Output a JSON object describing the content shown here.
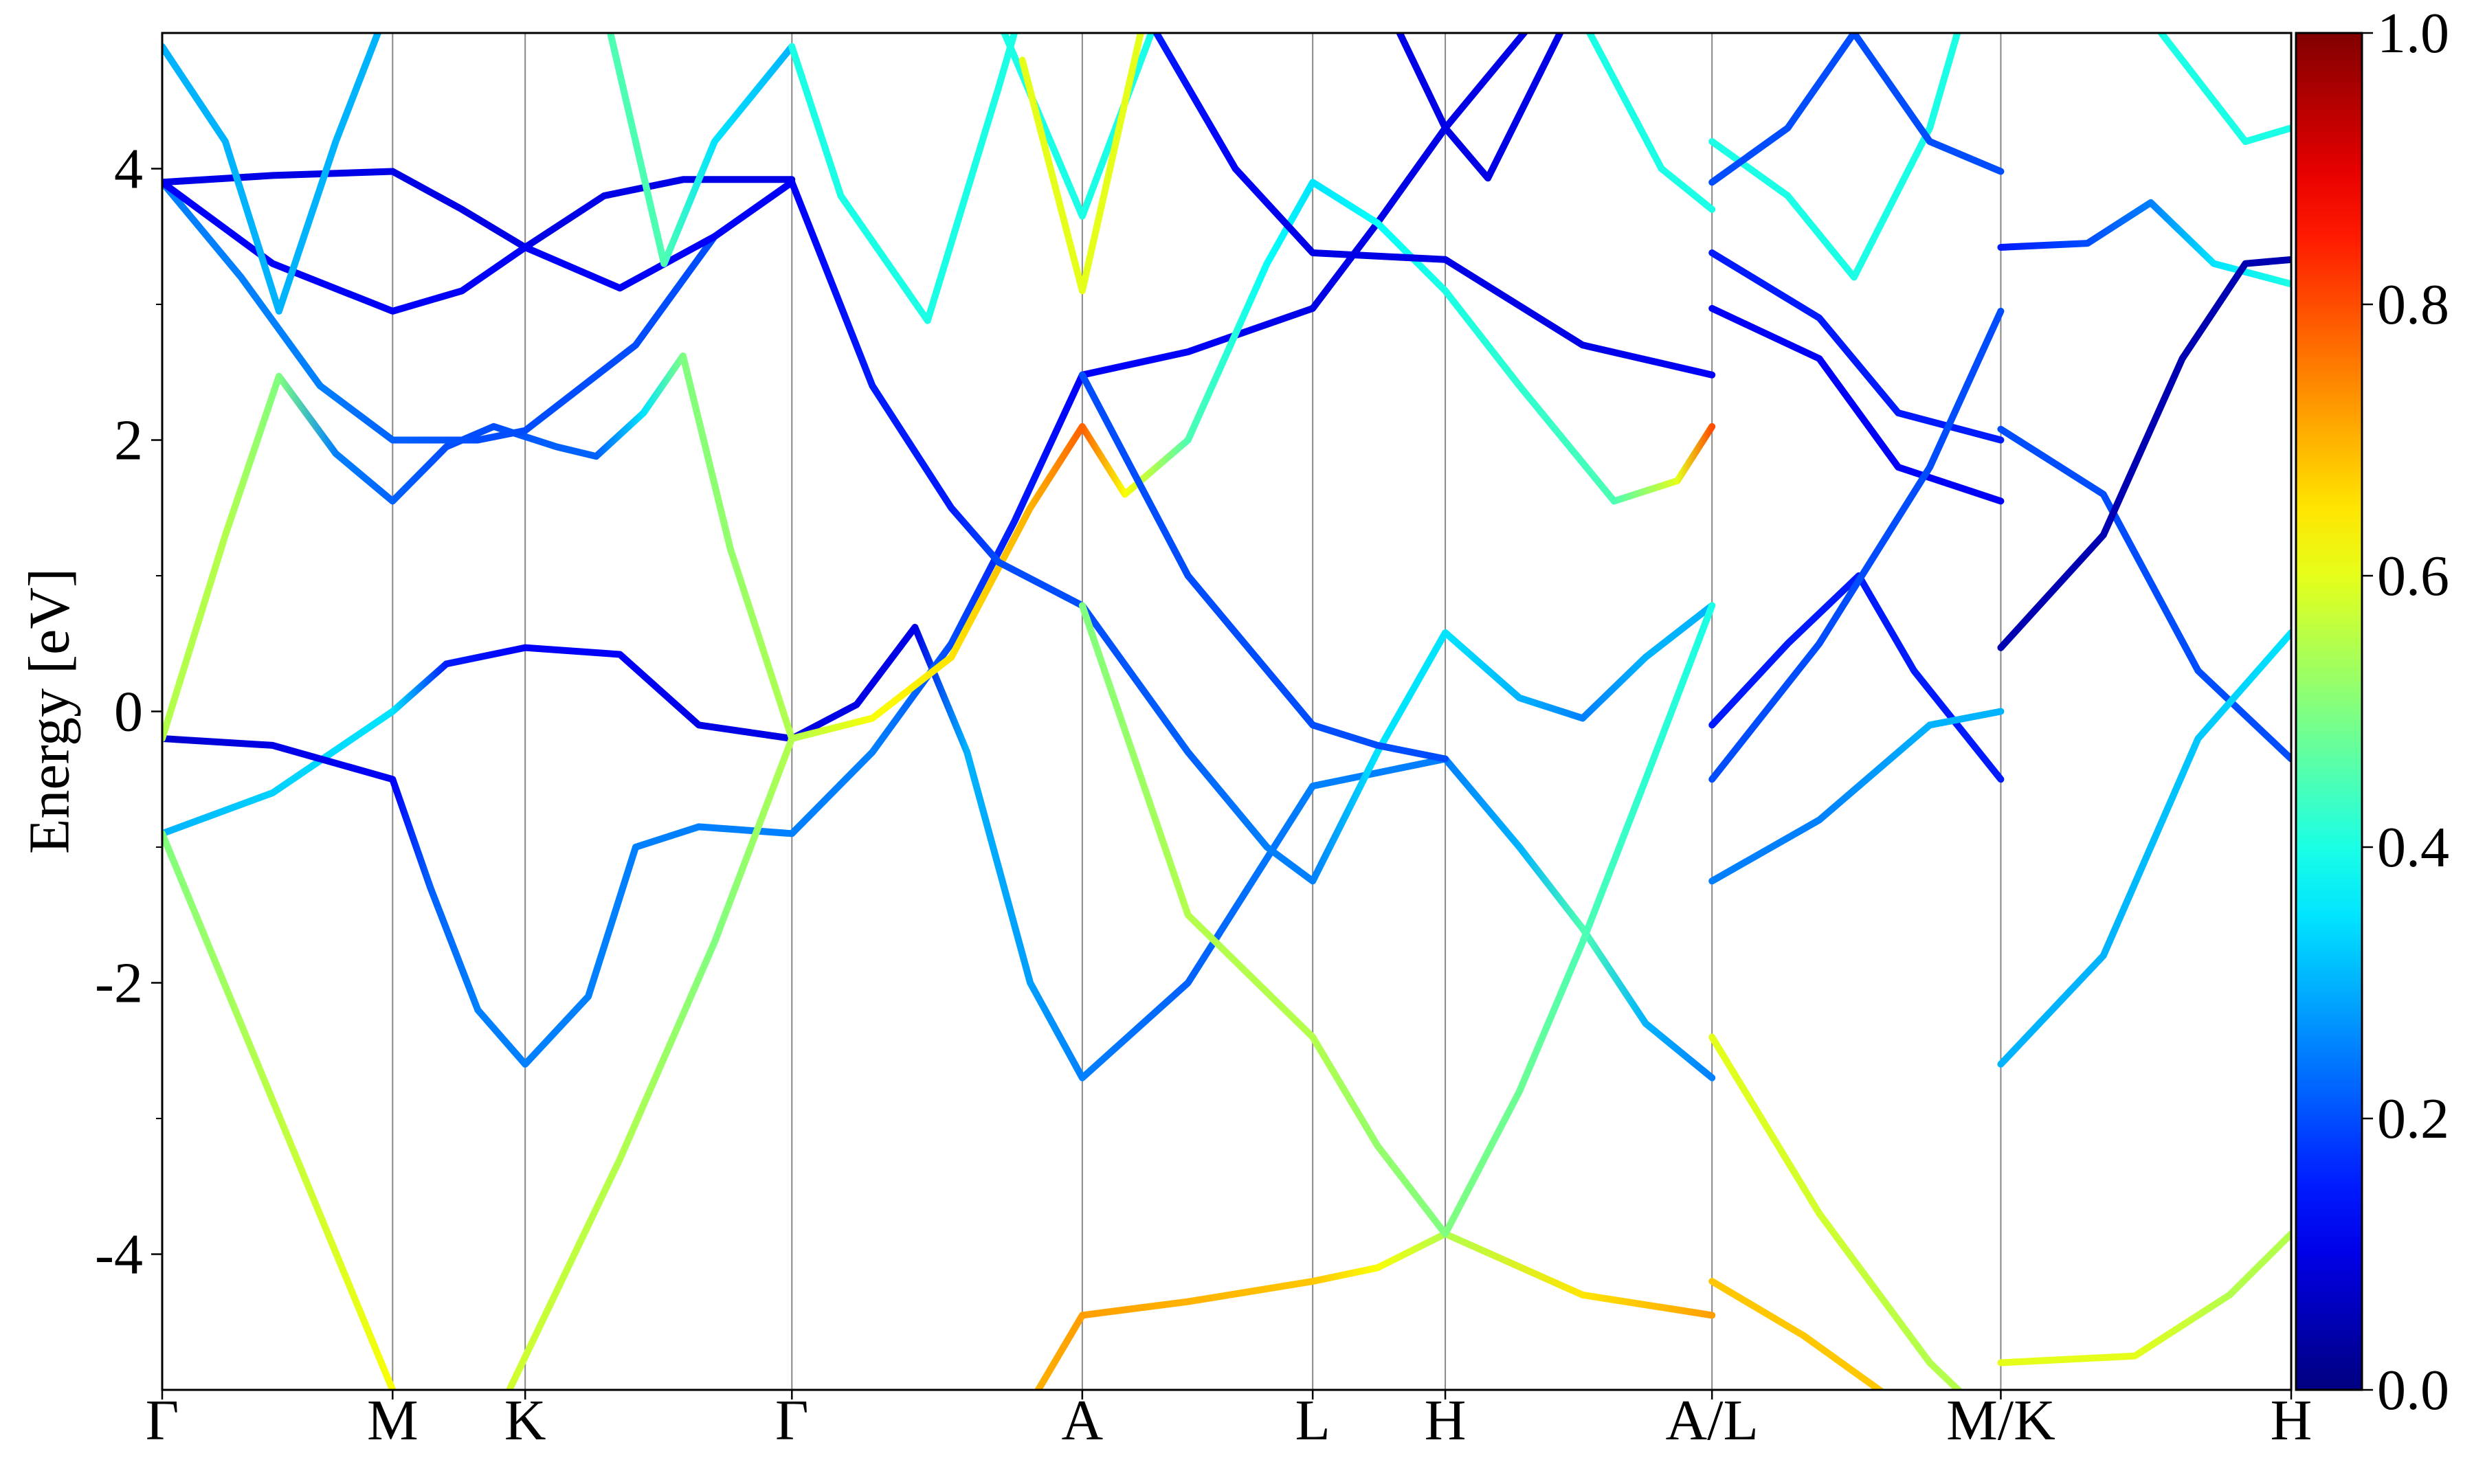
{
  "chart_data": {
    "type": "band",
    "ylabel": "Energy [eV]",
    "xlim": [
      0,
      13.49
    ],
    "ylim": [
      -5,
      5
    ],
    "xticks": [
      {
        "value": 0,
        "label": "Γ"
      },
      {
        "value": 1.46,
        "label": "M"
      },
      {
        "value": 2.3,
        "label": "K"
      },
      {
        "value": 3.99,
        "label": "Γ"
      },
      {
        "value": 5.83,
        "label": "A"
      },
      {
        "value": 7.29,
        "label": "L"
      },
      {
        "value": 8.13,
        "label": "H"
      },
      {
        "value": 9.82,
        "label": "A/L"
      },
      {
        "value": 11.65,
        "label": "M/K"
      },
      {
        "value": 13.49,
        "label": "H"
      }
    ],
    "yticks": [
      -4,
      -2,
      0,
      2,
      4
    ],
    "yminorticks": [
      -3,
      -1,
      1,
      3
    ],
    "colormap": "jet",
    "clim": [
      0,
      1
    ],
    "cticks": [
      {
        "value": 0,
        "label": "0.0"
      },
      0.2,
      0.4,
      0.6,
      0.8,
      {
        "value": 1,
        "label": "1.0"
      }
    ],
    "grid": true,
    "series": [
      {
        "x": [
          0,
          0.7,
          1.46,
          1.8,
          2.3,
          2.9,
          3.4,
          3.99,
          4.4,
          4.77,
          5.1,
          5.5,
          5.83,
          6.5,
          7.29,
          8.13,
          8.6,
          9.0,
          9.4,
          9.82
        ],
        "values": [
          -0.9,
          -0.6,
          0.0,
          0.35,
          0.47,
          0.42,
          -0.1,
          -0.2,
          0.05,
          0.62,
          -0.3,
          -2.0,
          -2.7,
          -2.0,
          -0.55,
          -0.35,
          -1.0,
          -1.6,
          -2.3,
          -2.7
        ],
        "weights": [
          0.3,
          0.33,
          0.35,
          0.15,
          0.12,
          0.12,
          0.1,
          0.1,
          0.1,
          0.1,
          0.3,
          0.28,
          0.25,
          0.22,
          0.25,
          0.25,
          0.3,
          0.45,
          0.3,
          0.25
        ]
      },
      {
        "x": [
          0,
          0.7,
          1.46,
          1.7,
          2.0,
          2.3,
          2.7,
          3.0,
          3.4,
          3.99,
          4.5,
          5.0,
          5.4,
          5.83,
          6.5,
          7.29,
          7.7,
          8.13,
          8.7
        ],
        "values": [
          -0.2,
          -0.25,
          -0.5,
          -1.3,
          -2.2,
          -2.6,
          -2.1,
          -1.0,
          -0.85,
          -0.9,
          -0.3,
          0.5,
          1.4,
          2.48,
          2.65,
          2.97,
          3.6,
          4.3,
          5.1
        ],
        "weights": [
          0.08,
          0.1,
          0.12,
          0.22,
          0.25,
          0.25,
          0.25,
          0.25,
          0.25,
          0.25,
          0.25,
          0.2,
          0.15,
          0.12,
          0.12,
          0.1,
          0.1,
          0.1,
          0.1
        ]
      },
      {
        "x": [
          0,
          1.46
        ],
        "values": [
          -0.9,
          -5.0
        ],
        "weights": [
          0.5,
          0.62
        ]
      },
      {
        "x": [
          2.2,
          2.9,
          3.5,
          3.99,
          4.5,
          5.0,
          5.5,
          5.83,
          6.1,
          6.5,
          7.0,
          7.29,
          7.7,
          8.13,
          8.6,
          9.2,
          9.6,
          9.82
        ],
        "values": [
          -5.0,
          -3.3,
          -1.7,
          -0.2,
          -0.05,
          0.4,
          1.5,
          2.1,
          1.6,
          2.0,
          3.3,
          3.9,
          3.6,
          3.1,
          2.4,
          1.55,
          1.7,
          2.1
        ],
        "weights": [
          0.58,
          0.55,
          0.5,
          0.55,
          0.62,
          0.65,
          0.7,
          0.78,
          0.62,
          0.45,
          0.38,
          0.35,
          0.38,
          0.4,
          0.42,
          0.45,
          0.6,
          0.8
        ]
      },
      {
        "x": [
          0,
          0.4,
          0.74,
          1.1,
          1.46,
          1.8,
          2.1,
          2.5,
          2.75,
          3.05,
          3.3,
          3.6,
          3.99
        ],
        "values": [
          -0.2,
          1.3,
          2.47,
          1.9,
          1.55,
          1.95,
          2.1,
          1.95,
          1.88,
          2.2,
          2.62,
          1.2,
          -0.2
        ],
        "weights": [
          0.55,
          0.55,
          0.5,
          0.25,
          0.22,
          0.2,
          0.2,
          0.22,
          0.22,
          0.35,
          0.5,
          0.52,
          0.55
        ]
      },
      {
        "x": [
          0,
          0.5,
          1.0,
          1.46,
          2.0,
          2.3,
          3.0,
          3.5,
          3.99,
          4.5,
          5.0,
          5.3,
          5.83,
          6.5,
          7.0,
          7.29,
          7.7,
          8.13,
          8.6,
          9.0,
          9.4,
          9.82
        ],
        "values": [
          3.9,
          3.2,
          2.4,
          2.0,
          2.0,
          2.07,
          2.7,
          3.5,
          3.9,
          2.4,
          1.5,
          1.1,
          0.78,
          -0.3,
          -1.0,
          -1.25,
          -0.3,
          0.58,
          0.1,
          -0.05,
          0.4,
          0.78
        ],
        "weights": [
          0.25,
          0.25,
          0.25,
          0.22,
          0.2,
          0.2,
          0.2,
          0.2,
          0.12,
          0.15,
          0.15,
          0.2,
          0.2,
          0.22,
          0.25,
          0.25,
          0.35,
          0.35,
          0.3,
          0.25,
          0.3,
          0.3
        ]
      },
      {
        "x": [
          0,
          0.7,
          1.46,
          1.9,
          2.3,
          2.8,
          3.3,
          3.99
        ],
        "values": [
          3.9,
          3.95,
          3.98,
          3.7,
          3.42,
          3.8,
          3.92,
          3.92
        ],
        "weights": [
          0.1,
          0.1,
          0.1,
          0.1,
          0.1,
          0.1,
          0.1,
          0.1
        ]
      },
      {
        "x": [
          0,
          0.7,
          1.46,
          1.9,
          2.3,
          2.9,
          3.5,
          3.99
        ],
        "values": [
          3.9,
          3.3,
          2.95,
          3.1,
          3.42,
          3.12,
          3.5,
          3.9
        ],
        "weights": [
          0.12,
          0.12,
          0.12,
          0.12,
          0.12,
          0.12,
          0.12,
          0.12
        ]
      },
      {
        "x": [
          0,
          0.4,
          0.74,
          1.1,
          1.4
        ],
        "values": [
          4.9,
          4.2,
          2.95,
          4.2,
          5.1
        ],
        "weights": [
          0.3,
          0.3,
          0.3,
          0.3,
          0.3
        ]
      },
      {
        "x": [
          2.82,
          3.18,
          3.5,
          3.99
        ],
        "values": [
          5.1,
          3.3,
          4.2,
          4.9
        ],
        "weights": [
          0.45,
          0.45,
          0.35,
          0.3
        ]
      },
      {
        "x": [
          3.99,
          4.3,
          4.85,
          5.3,
          5.45
        ],
        "values": [
          4.9,
          3.8,
          2.88,
          4.6,
          5.2
        ],
        "weights": [
          0.4,
          0.4,
          0.4,
          0.4,
          0.4
        ]
      },
      {
        "x": [
          5.3,
          5.83,
          6.3
        ],
        "values": [
          5.1,
          3.65,
          5.1
        ],
        "weights": [
          0.4,
          0.4,
          0.4
        ]
      },
      {
        "x": [
          5.45,
          5.83,
          6.2
        ],
        "values": [
          4.8,
          3.1,
          5.0
        ],
        "weights": [
          0.6,
          0.6,
          0.6
        ]
      },
      {
        "x": [
          6.3,
          6.8,
          7.29,
          8.13,
          9.0,
          9.82
        ],
        "values": [
          5.0,
          4.0,
          3.38,
          3.33,
          2.7,
          2.48
        ],
        "weights": [
          0.15,
          0.12,
          0.1,
          0.1,
          0.1,
          0.12
        ]
      },
      {
        "x": [
          7.8,
          8.13,
          8.4,
          8.9
        ],
        "values": [
          5.1,
          4.3,
          3.93,
          5.1
        ],
        "weights": [
          0.1,
          0.1,
          0.1,
          0.1
        ]
      },
      {
        "x": [
          9.0,
          9.5,
          9.82
        ],
        "values": [
          5.1,
          4.0,
          3.7
        ],
        "weights": [
          0.4,
          0.4,
          0.4
        ]
      },
      {
        "x": [
          5.5,
          5.83,
          6.5,
          7.29,
          7.7,
          8.13,
          9.0,
          9.82
        ],
        "values": [
          -5.1,
          -4.45,
          -4.35,
          -4.2,
          -4.1,
          -3.85,
          -4.3,
          -4.45
        ],
        "weights": [
          0.7,
          0.72,
          0.7,
          0.68,
          0.62,
          0.55,
          0.65,
          0.72
        ]
      },
      {
        "x": [
          5.83,
          6.5,
          7.29,
          7.7,
          8.13,
          8.6,
          9.0,
          9.4,
          9.82
        ],
        "values": [
          0.78,
          -1.5,
          -2.4,
          -3.2,
          -3.85,
          -2.8,
          -1.7,
          -0.5,
          0.78
        ],
        "weights": [
          0.5,
          0.55,
          0.55,
          0.52,
          0.5,
          0.48,
          0.45,
          0.42,
          0.4
        ]
      },
      {
        "x": [
          5.83,
          6.5,
          7.29,
          7.7,
          8.13
        ],
        "values": [
          2.48,
          1.0,
          -0.1,
          -0.25,
          -0.35
        ],
        "weights": [
          0.2,
          0.2,
          0.2,
          0.2,
          0.2
        ]
      },
      {
        "x": [
          9.82,
          10.3,
          10.72,
          11.2,
          11.4
        ],
        "values": [
          4.2,
          3.8,
          3.2,
          4.3,
          5.1
        ],
        "weights": [
          0.4,
          0.4,
          0.4,
          0.4,
          0.4
        ]
      },
      {
        "x": [
          9.82,
          10.3,
          10.72,
          11.2,
          11.65
        ],
        "values": [
          3.9,
          4.3,
          5.0,
          4.2,
          3.98
        ],
        "weights": [
          0.2,
          0.2,
          0.2,
          0.2,
          0.2
        ]
      },
      {
        "x": [
          9.82,
          10.5,
          11.0,
          11.65
        ],
        "values": [
          3.38,
          2.9,
          2.2,
          2.0
        ],
        "weights": [
          0.15,
          0.15,
          0.15,
          0.15
        ]
      },
      {
        "x": [
          9.82,
          10.5,
          11.0,
          11.65
        ],
        "values": [
          2.97,
          2.6,
          1.8,
          1.55
        ],
        "weights": [
          0.12,
          0.12,
          0.12,
          0.12
        ]
      },
      {
        "x": [
          9.82,
          10.3,
          10.75,
          11.1,
          11.65
        ],
        "values": [
          -0.1,
          0.5,
          1.0,
          0.3,
          -0.5
        ],
        "weights": [
          0.15,
          0.15,
          0.15,
          0.15,
          0.15
        ]
      },
      {
        "x": [
          9.82,
          10.5,
          11.2,
          11.65
        ],
        "values": [
          -0.5,
          0.5,
          1.8,
          2.95
        ],
        "weights": [
          0.2,
          0.2,
          0.2,
          0.2
        ]
      },
      {
        "x": [
          9.82,
          10.5,
          11.2,
          11.65
        ],
        "values": [
          -1.25,
          -0.8,
          -0.1,
          0.0
        ],
        "weights": [
          0.25,
          0.25,
          0.3,
          0.3
        ]
      },
      {
        "x": [
          9.82,
          10.5,
          11.2,
          11.65
        ],
        "values": [
          -2.4,
          -3.7,
          -4.8,
          -5.3
        ],
        "weights": [
          0.6,
          0.58,
          0.55,
          0.55
        ]
      },
      {
        "x": [
          9.82,
          10.4,
          11.0,
          11.65
        ],
        "values": [
          -4.2,
          -4.6,
          -5.1,
          -5.4
        ],
        "weights": [
          0.68,
          0.68,
          0.68,
          0.68
        ]
      },
      {
        "x": [
          11.65,
          12.2,
          12.6,
          13.0,
          13.49
        ],
        "values": [
          3.42,
          3.45,
          3.75,
          3.3,
          3.15
        ],
        "weights": [
          0.15,
          0.2,
          0.25,
          0.35,
          0.4
        ]
      },
      {
        "x": [
          11.65,
          12.3,
          12.9,
          13.49
        ],
        "values": [
          2.08,
          1.6,
          0.3,
          -0.35
        ],
        "weights": [
          0.2,
          0.2,
          0.2,
          0.2
        ]
      },
      {
        "x": [
          11.65,
          12.3,
          12.8,
          13.2,
          13.49
        ],
        "values": [
          0.47,
          1.3,
          2.6,
          3.3,
          3.33
        ],
        "weights": [
          0.05,
          0.05,
          0.05,
          0.05,
          0.05
        ]
      },
      {
        "x": [
          11.65,
          12.3,
          12.9,
          13.49
        ],
        "values": [
          -2.6,
          -1.8,
          -0.2,
          0.58
        ],
        "weights": [
          0.3,
          0.3,
          0.32,
          0.35
        ]
      },
      {
        "x": [
          11.65,
          12.5,
          13.1,
          13.49
        ],
        "values": [
          -4.8,
          -4.75,
          -4.3,
          -3.85
        ],
        "weights": [
          0.6,
          0.6,
          0.55,
          0.55
        ]
      },
      {
        "x": [
          12.6,
          13.2,
          13.49
        ],
        "values": [
          5.1,
          4.2,
          4.3
        ],
        "weights": [
          0.4,
          0.4,
          0.4
        ]
      }
    ]
  }
}
